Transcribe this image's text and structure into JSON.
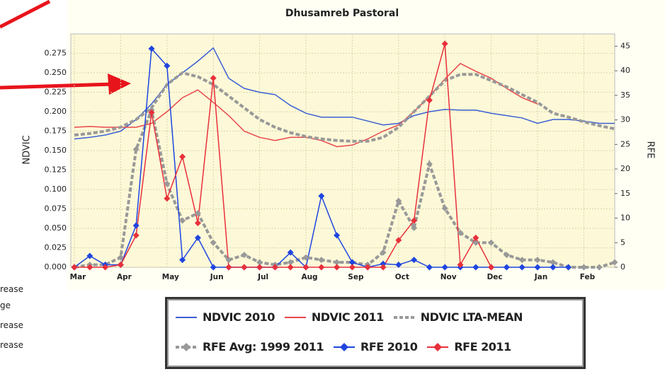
{
  "chart_data": {
    "type": "line",
    "title": "Dhusamreb Pastoral",
    "y_label": "NDVIC",
    "y2_label": "RFE",
    "categories": [
      "Mar",
      null,
      null,
      "Apr",
      null,
      null,
      "May",
      null,
      null,
      "Jun",
      null,
      null,
      "Jul",
      null,
      null,
      "Aug",
      null,
      null,
      "Sep",
      null,
      null,
      "Oct",
      null,
      null,
      "Nov",
      null,
      null,
      "Dec",
      null,
      null,
      "Jan",
      null,
      null,
      "Feb",
      null,
      null
    ],
    "ylim": [
      0,
      0.3
    ],
    "yticks": [
      {
        "value": 0,
        "label": "0.000"
      },
      {
        "value": 0.025,
        "label": "0.025"
      },
      {
        "value": 0.05,
        "label": "0.050"
      },
      {
        "value": 0.075,
        "label": "0.075"
      },
      {
        "value": 0.1,
        "label": "0.100"
      },
      {
        "value": 0.125,
        "label": "0.125"
      },
      {
        "value": 0.15,
        "label": "0.150"
      },
      {
        "value": 0.175,
        "label": "0.175"
      },
      {
        "value": 0.2,
        "label": "0.200"
      },
      {
        "value": 0.225,
        "label": "0.225"
      },
      {
        "value": 0.25,
        "label": "0.250"
      },
      {
        "value": 0.275,
        "label": "0.275"
      }
    ],
    "y2lim": [
      0,
      47.5
    ],
    "y2ticks": [
      0,
      5,
      10,
      15,
      20,
      25,
      30,
      35,
      40,
      45
    ],
    "grid": true,
    "series": [
      {
        "name": "NDVIC 2010",
        "color": "#3b5fd6",
        "style": "solid",
        "values": [
          0.165,
          0.167,
          0.17,
          0.175,
          0.19,
          0.21,
          0.235,
          0.25,
          0.265,
          0.282,
          0.243,
          0.23,
          0.225,
          0.222,
          0.208,
          0.198,
          0.193,
          0.193,
          0.193,
          0.188,
          0.183,
          0.185,
          0.195,
          0.2,
          0.203,
          0.202,
          0.202,
          0.198,
          0.195,
          0.192,
          0.185,
          0.19,
          0.19,
          0.188,
          0.185,
          0.185
        ]
      },
      {
        "name": "NDVIC 2011",
        "color": "#e8474a",
        "style": "solid",
        "values": [
          0.18,
          0.181,
          0.18,
          0.18,
          0.18,
          0.185,
          0.2,
          0.218,
          0.228,
          0.212,
          0.195,
          0.175,
          0.167,
          0.163,
          0.167,
          0.167,
          0.163,
          0.155,
          0.157,
          0.165,
          0.175,
          0.183,
          0.2,
          0.22,
          0.242,
          0.262,
          0.252,
          0.243,
          0.23,
          0.218,
          0.21,
          null,
          null,
          null,
          null,
          null
        ]
      },
      {
        "name": "NDVIC LTA-MEAN",
        "color": "#999999",
        "style": "dashed",
        "values": [
          0.17,
          0.172,
          0.175,
          0.18,
          0.19,
          0.205,
          0.235,
          0.25,
          0.245,
          0.235,
          0.22,
          0.205,
          0.19,
          0.18,
          0.173,
          0.168,
          0.165,
          0.163,
          0.162,
          0.162,
          0.167,
          0.18,
          0.2,
          0.22,
          0.24,
          0.248,
          0.248,
          0.24,
          0.232,
          0.222,
          0.212,
          0.198,
          0.193,
          0.187,
          0.182,
          0.178
        ]
      },
      {
        "name": "RFE Avg: 1999 2011",
        "color": "#999999",
        "style": "dashed",
        "marker": "diamond",
        "axis": "y2",
        "values": [
          0,
          0.5,
          0.5,
          2,
          24,
          32,
          17,
          9.5,
          11,
          5,
          1.5,
          2.5,
          1,
          0.5,
          1,
          2,
          1.5,
          1,
          1,
          0.5,
          3,
          13.5,
          8,
          21,
          12,
          7,
          5,
          5,
          2.5,
          1.5,
          1.5,
          1,
          0,
          0,
          0,
          1
        ]
      },
      {
        "name": "RFE 2010",
        "color": "#1f45e0",
        "style": "solid",
        "marker": "diamond",
        "axis": "y2",
        "values": [
          0,
          2.3,
          0.5,
          0.5,
          8.5,
          44.5,
          41,
          1.5,
          6,
          0,
          0,
          0,
          0,
          0,
          3,
          0,
          14.5,
          6.5,
          1,
          0,
          0.7,
          0.5,
          1.5,
          0,
          0,
          0,
          0,
          0,
          0,
          0,
          0,
          0,
          0,
          null,
          null,
          null
        ]
      },
      {
        "name": "RFE 2011",
        "color": "#e8303a",
        "style": "solid",
        "marker": "diamond",
        "axis": "y2",
        "values": [
          0,
          0,
          0,
          0.5,
          6.5,
          31.5,
          14,
          22.5,
          9,
          38.5,
          0,
          0,
          0,
          0,
          0,
          0,
          0,
          0,
          0,
          0,
          0,
          5.5,
          9.5,
          34,
          45.5,
          0.5,
          6,
          0,
          null,
          null,
          null,
          null,
          null,
          null,
          null,
          null
        ]
      }
    ],
    "side_labels": [
      "rease",
      "ge",
      "rease",
      "rease"
    ]
  }
}
